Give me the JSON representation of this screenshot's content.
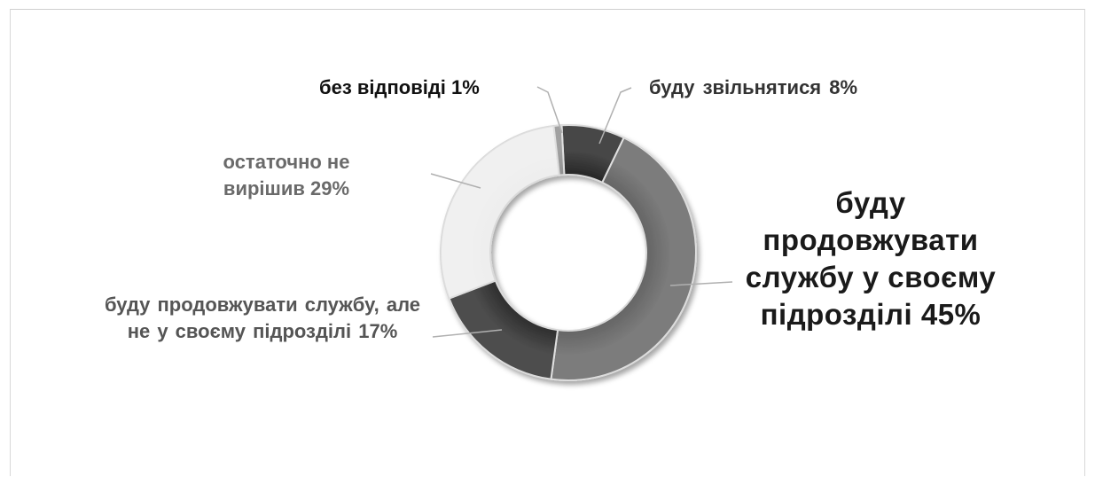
{
  "chart_data": {
    "type": "pie",
    "variant": "donut",
    "title": "",
    "slices": [
      {
        "label": "буду продовжувати службу у своєму підрозділі",
        "value": 45,
        "color": "#5f5f5f",
        "display": "буду продовжувати службу у своєму підрозділі  45%"
      },
      {
        "label": "буду продовжувати службу, але не у своєму підрозділі",
        "value": 17,
        "color": "#262626",
        "display": "буду  продовжувати службу, але не у своєму підрозділі 17%"
      },
      {
        "label": "остаточно не вирішив",
        "value": 29,
        "color": "#ededed",
        "display": "остаточно не вирішив 29%"
      },
      {
        "label": "без відповіді",
        "value": 1,
        "color": "#8c8c8c",
        "display": "без відповіді 1%"
      },
      {
        "label": "буду звільнятися",
        "value": 8,
        "color": "#1f1f1f",
        "display": "буду  звільнятися 8%"
      }
    ],
    "legend": "none",
    "data_labels": "outside"
  }
}
